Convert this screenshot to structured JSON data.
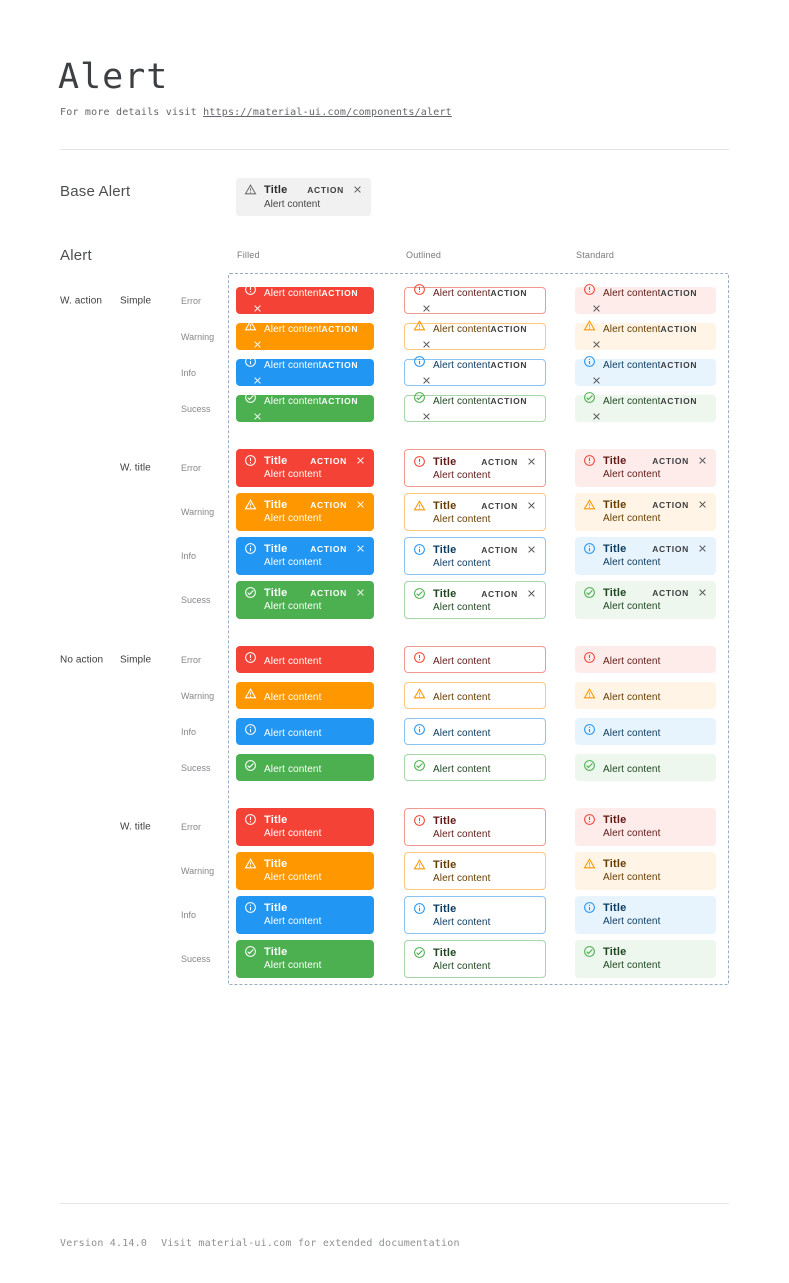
{
  "page": {
    "title": "Alert",
    "subtitle_prefix": "For more details visit ",
    "subtitle_link": "https://material-ui.com/components/alert"
  },
  "base": {
    "section_label": "Base Alert",
    "title": "Title",
    "content": "Alert content",
    "action_label": "ACTION"
  },
  "grid": {
    "section_label": "Alert",
    "columns": [
      "Filled",
      "Outlined",
      "Standard"
    ],
    "variants": [
      "filled",
      "outlined",
      "standard"
    ],
    "severities": [
      {
        "key": "error",
        "label": "Error",
        "icon": "error-icon"
      },
      {
        "key": "warning",
        "label": "Warning",
        "icon": "warning-icon"
      },
      {
        "key": "info",
        "label": "Info",
        "icon": "info-icon"
      },
      {
        "key": "success",
        "label": "Sucess",
        "icon": "success-icon"
      }
    ],
    "groups": [
      {
        "label": "W. action",
        "subgroups": [
          {
            "label": "Simple",
            "with_title": false,
            "with_action": true
          },
          {
            "label": "W. title",
            "with_title": true,
            "with_action": true
          }
        ]
      },
      {
        "label": "No action",
        "subgroups": [
          {
            "label": "Simple",
            "with_title": false,
            "with_action": false
          },
          {
            "label": "W. title",
            "with_title": true,
            "with_action": false
          }
        ]
      }
    ],
    "alert_title": "Title",
    "alert_content": "Alert content",
    "action_label": "ACTION"
  },
  "footer": {
    "version": "Version 4.14.0",
    "note": "Visit material-ui.com for extended documentation"
  },
  "palette": {
    "error": {
      "main": "#f44336",
      "border": "#f1998e",
      "bg": "#fdecea",
      "dark": "#611a15"
    },
    "warning": {
      "main": "#ff9800",
      "border": "#ffc77d",
      "bg": "#fff4e5",
      "dark": "#663c00"
    },
    "info": {
      "main": "#2196f3",
      "border": "#89c4f4",
      "bg": "#e8f4fd",
      "dark": "#0d3c61"
    },
    "success": {
      "main": "#4caf50",
      "border": "#a5d6a7",
      "bg": "#edf7ed",
      "dark": "#1e4620"
    },
    "base_alert_bg": "#f1f1f1",
    "grid_outline": "#9aadc0"
  }
}
